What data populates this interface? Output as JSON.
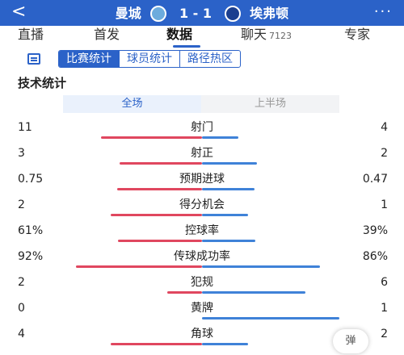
{
  "header": {
    "home_team": "曼城",
    "away_team": "埃弗顿",
    "score": "1 - 1",
    "back_icon": "chevron-left-icon",
    "more_icon": "more-dots-icon",
    "color": "#2b62c8"
  },
  "tabs": [
    {
      "label": "直播",
      "sub": ""
    },
    {
      "label": "首发",
      "sub": ""
    },
    {
      "label": "数据",
      "sub": ""
    },
    {
      "label": "聊天",
      "sub": "7123"
    },
    {
      "label": "专家",
      "sub": ""
    }
  ],
  "active_tab": "数据",
  "segment": {
    "items": [
      "比赛统计",
      "球员统计",
      "路径热区"
    ],
    "selected": "比赛统计"
  },
  "section_title": "技术统计",
  "period": {
    "full": "全场",
    "first_half": "上半场",
    "selected": "全场"
  },
  "stats": [
    {
      "name": "射门",
      "home": "11",
      "away": "4",
      "home_ratio": 0.733,
      "away_ratio": 0.267
    },
    {
      "name": "射正",
      "home": "3",
      "away": "2",
      "home_ratio": 0.6,
      "away_ratio": 0.4
    },
    {
      "name": "预期进球",
      "home": "0.75",
      "away": "0.47",
      "home_ratio": 0.615,
      "away_ratio": 0.385
    },
    {
      "name": "得分机会",
      "home": "2",
      "away": "1",
      "home_ratio": 0.667,
      "away_ratio": 0.333
    },
    {
      "name": "控球率",
      "home": "61%",
      "away": "39%",
      "home_ratio": 0.61,
      "away_ratio": 0.39
    },
    {
      "name": "传球成功率",
      "home": "92%",
      "away": "86%",
      "home_ratio": 0.92,
      "away_ratio": 0.86
    },
    {
      "name": "犯规",
      "home": "2",
      "away": "6",
      "home_ratio": 0.25,
      "away_ratio": 0.75
    },
    {
      "name": "黄牌",
      "home": "0",
      "away": "1",
      "home_ratio": 0.0,
      "away_ratio": 1.0
    },
    {
      "name": "角球",
      "home": "4",
      "away": "2",
      "home_ratio": 0.667,
      "away_ratio": 0.333
    }
  ],
  "colors": {
    "home_bar": "#e0475f",
    "away_bar": "#3f82d8"
  },
  "danmu_button": "弹"
}
